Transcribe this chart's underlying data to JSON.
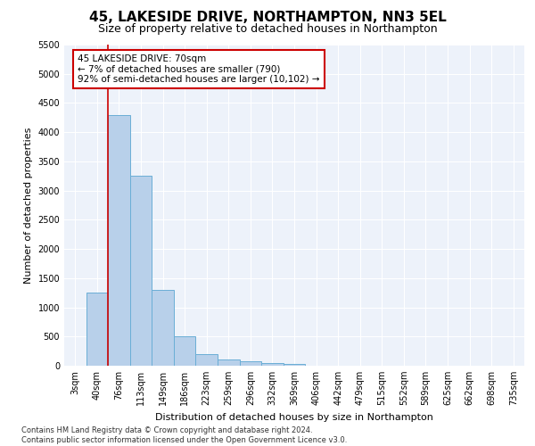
{
  "title": "45, LAKESIDE DRIVE, NORTHAMPTON, NN3 5EL",
  "subtitle": "Size of property relative to detached houses in Northampton",
  "xlabel": "Distribution of detached houses by size in Northampton",
  "ylabel": "Number of detached properties",
  "categories": [
    "3sqm",
    "40sqm",
    "76sqm",
    "113sqm",
    "149sqm",
    "186sqm",
    "223sqm",
    "259sqm",
    "296sqm",
    "332sqm",
    "369sqm",
    "406sqm",
    "442sqm",
    "479sqm",
    "515sqm",
    "552sqm",
    "589sqm",
    "625sqm",
    "662sqm",
    "698sqm",
    "735sqm"
  ],
  "values": [
    0,
    1250,
    4300,
    3250,
    1300,
    500,
    200,
    100,
    75,
    50,
    30,
    0,
    0,
    0,
    0,
    0,
    0,
    0,
    0,
    0,
    0
  ],
  "bar_color": "#b8d0ea",
  "bar_edge_color": "#6aaed6",
  "annotation_box_color": "#ffffff",
  "annotation_box_edge": "#cc0000",
  "annotation_text_lines": [
    "45 LAKESIDE DRIVE: 70sqm",
    "← 7% of detached houses are smaller (790)",
    "92% of semi-detached houses are larger (10,102) →"
  ],
  "property_line_x": 1.5,
  "ylim": [
    0,
    5500
  ],
  "yticks": [
    0,
    500,
    1000,
    1500,
    2000,
    2500,
    3000,
    3500,
    4000,
    4500,
    5000,
    5500
  ],
  "footer": "Contains HM Land Registry data © Crown copyright and database right 2024.\nContains public sector information licensed under the Open Government Licence v3.0.",
  "bg_color": "#edf2fa",
  "title_fontsize": 11,
  "subtitle_fontsize": 9,
  "axis_label_fontsize": 8,
  "tick_fontsize": 7,
  "annotation_fontsize": 7.5,
  "footer_fontsize": 6
}
